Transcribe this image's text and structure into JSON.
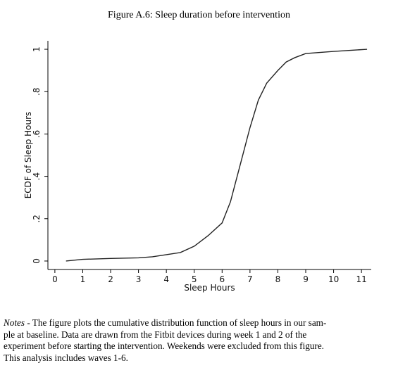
{
  "title": "Figure A.6: Sleep duration before intervention",
  "chart_data": {
    "type": "line",
    "xlabel": "Sleep Hours",
    "ylabel": "ECDF of Sleep Hours",
    "x": [
      0.4,
      1,
      2,
      3,
      3.5,
      4,
      4.5,
      5,
      5.5,
      6,
      6.3,
      6.5,
      6.7,
      7,
      7.3,
      7.6,
      8,
      8.3,
      8.6,
      9,
      10,
      11.2
    ],
    "series": [
      {
        "name": "ECDF",
        "color": "#222222",
        "values": [
          0,
          0.008,
          0.012,
          0.015,
          0.02,
          0.03,
          0.04,
          0.07,
          0.12,
          0.18,
          0.28,
          0.38,
          0.48,
          0.63,
          0.76,
          0.84,
          0.9,
          0.94,
          0.96,
          0.98,
          0.99,
          1.0
        ]
      }
    ],
    "xlim": [
      -0.25,
      11.35
    ],
    "ylim": [
      -0.04,
      1.04
    ],
    "xticks": [
      0,
      1,
      2,
      3,
      4,
      5,
      6,
      7,
      8,
      9,
      10,
      11
    ],
    "yticks": [
      0,
      {
        "value": 0.2,
        "label": ".2"
      },
      {
        "value": 0.4,
        "label": ".4"
      },
      {
        "value": 0.6,
        "label": ".6"
      },
      {
        "value": 0.8,
        "label": ".8"
      },
      1
    ]
  },
  "notes": {
    "label": "Notes -",
    "lines": [
      "The figure plots the cumulative distribution function of sleep hours in our sam-",
      "ple at baseline.  Data are drawn from the Fitbit devices during week 1 and 2 of the",
      "experiment before starting the intervention. Weekends were excluded from this figure.",
      "This analysis includes waves 1-6."
    ]
  }
}
